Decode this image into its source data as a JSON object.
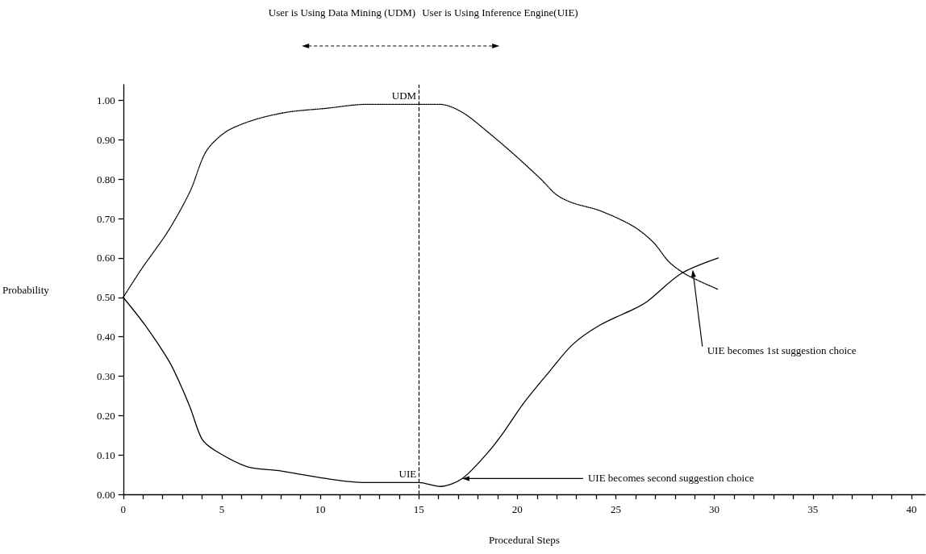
{
  "chart_data": {
    "type": "line",
    "xlabel": "Procedural Steps",
    "ylabel": "Probability",
    "series": [
      {
        "name": "UDM",
        "color": "#000000",
        "line_style": "dotted",
        "x": [
          0,
          0.9,
          2.3,
          3.4,
          4.2,
          5.2,
          6.6,
          8.3,
          10.3,
          12.3,
          15,
          16.1,
          17.2,
          18.5,
          19.9,
          21.2,
          22,
          22.8,
          24.2,
          25.9,
          26.9,
          27.7,
          28.5,
          29.3,
          30.2
        ],
        "values": [
          0.5,
          0.57,
          0.67,
          0.77,
          0.87,
          0.92,
          0.95,
          0.97,
          0.98,
          0.99,
          0.99,
          0.99,
          0.97,
          0.92,
          0.86,
          0.8,
          0.76,
          0.74,
          0.72,
          0.68,
          0.64,
          0.59,
          0.56,
          0.54,
          0.52
        ]
      },
      {
        "name": "UIE",
        "color": "#000000",
        "line_style": "solid",
        "x": [
          0,
          1.1,
          2.3,
          2.8,
          3.4,
          4,
          4.7,
          6.3,
          7.9,
          10.3,
          12.3,
          15,
          16.1,
          17.2,
          18.4,
          19.2,
          20.3,
          21.6,
          22.8,
          24.2,
          25.9,
          26.6,
          28.3,
          30.2
        ],
        "values": [
          0.5,
          0.43,
          0.34,
          0.29,
          0.22,
          0.14,
          0.11,
          0.07,
          0.06,
          0.04,
          0.03,
          0.03,
          0.02,
          0.04,
          0.1,
          0.15,
          0.23,
          0.31,
          0.38,
          0.43,
          0.47,
          0.49,
          0.56,
          0.6
        ]
      }
    ],
    "xlim": [
      0,
      40.7
    ],
    "xticks": [
      0,
      {
        "value": 1,
        "label": null
      },
      {
        "value": 2,
        "label": null
      },
      {
        "value": 3,
        "label": null
      },
      {
        "value": 4,
        "label": null
      },
      5,
      {
        "value": 6,
        "label": null
      },
      {
        "value": 7,
        "label": null
      },
      {
        "value": 8,
        "label": null
      },
      {
        "value": 9,
        "label": null
      },
      10,
      {
        "value": 11,
        "label": null
      },
      {
        "value": 12,
        "label": null
      },
      {
        "value": 13,
        "label": null
      },
      {
        "value": 14,
        "label": null
      },
      15,
      {
        "value": 16,
        "label": null
      },
      {
        "value": 17,
        "label": null
      },
      {
        "value": 18,
        "label": null
      },
      {
        "value": 19,
        "label": null
      },
      20,
      {
        "value": 21,
        "label": null
      },
      {
        "value": 22,
        "label": null
      },
      {
        "value": 23,
        "label": null
      },
      {
        "value": 24,
        "label": null
      },
      25,
      {
        "value": 26,
        "label": null
      },
      {
        "value": 27,
        "label": null
      },
      {
        "value": 28,
        "label": null
      },
      {
        "value": 29,
        "label": null
      },
      30,
      {
        "value": 31,
        "label": null
      },
      {
        "value": 32,
        "label": null
      },
      {
        "value": 33,
        "label": null
      },
      {
        "value": 34,
        "label": null
      },
      35,
      {
        "value": 36,
        "label": null
      },
      {
        "value": 37,
        "label": null
      },
      {
        "value": 38,
        "label": null
      },
      {
        "value": 39,
        "label": null
      },
      40
    ],
    "ylim": [
      0,
      1.04
    ],
    "yticks": [
      {
        "value": 0,
        "label": "0.00"
      },
      {
        "value": 0.1,
        "label": "0.10"
      },
      {
        "value": 0.2,
        "label": "0.20"
      },
      {
        "value": 0.3,
        "label": "0.30"
      },
      {
        "value": 0.4,
        "label": "0.40"
      },
      {
        "value": 0.5,
        "label": "0.50"
      },
      {
        "value": 0.6,
        "label": "0.60"
      },
      {
        "value": 0.7,
        "label": "0.70"
      },
      {
        "value": 0.8,
        "label": "0.80"
      },
      {
        "value": 0.9,
        "label": "0.90"
      },
      {
        "value": 1,
        "label": "1.00"
      }
    ],
    "ref_lines": [
      {
        "axis": "x",
        "value": 15,
        "color": "#000000",
        "line_style": "dashed"
      }
    ],
    "annotations": [
      "User is Using Data Mining (UDM)",
      "User is Using Inference Engine(UIE)",
      {
        "text": "UIE becomes second suggestion choice",
        "x": 17.2,
        "y": 0.04
      },
      {
        "text": "UIE becomes 1st suggestion choice",
        "x": 28.9,
        "y": 0.57
      }
    ],
    "grid": false,
    "legend": false,
    "marker": "none"
  }
}
